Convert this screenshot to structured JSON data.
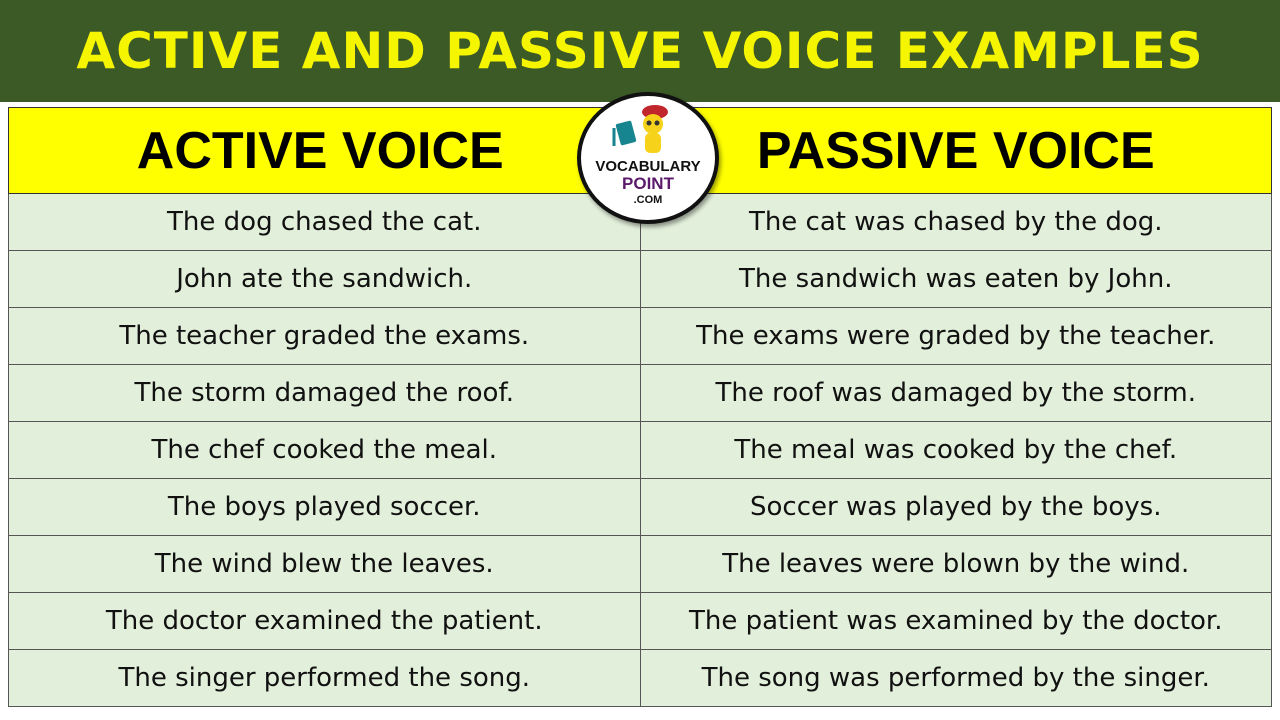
{
  "title": "ACTIVE AND PASSIVE VOICE EXAMPLES",
  "colors": {
    "banner": "#3b5a26",
    "title_text": "#f5f500",
    "header_bg": "#ffff00",
    "row_bg": "#e2efda"
  },
  "logo": {
    "line1": "VOCABULARY",
    "line2": "POINT",
    "line3": ".COM"
  },
  "headers": [
    "ACTIVE VOICE",
    "PASSIVE VOICE"
  ],
  "rows": [
    [
      "The dog chased the cat.",
      "The cat was chased by the dog."
    ],
    [
      "John ate the sandwich.",
      "The sandwich was eaten by John."
    ],
    [
      "The teacher graded the exams.",
      "The exams were graded by the teacher."
    ],
    [
      "The storm damaged the roof.",
      "The roof was damaged by the storm."
    ],
    [
      "The chef cooked the meal.",
      "The meal was cooked by the chef."
    ],
    [
      "The boys played soccer.",
      "Soccer was played by the boys."
    ],
    [
      "The wind blew the leaves.",
      "The leaves were blown by the wind."
    ],
    [
      "The doctor examined the patient.",
      "The patient was examined by the doctor."
    ],
    [
      "The singer performed the song.",
      "The song was performed by the singer."
    ]
  ]
}
